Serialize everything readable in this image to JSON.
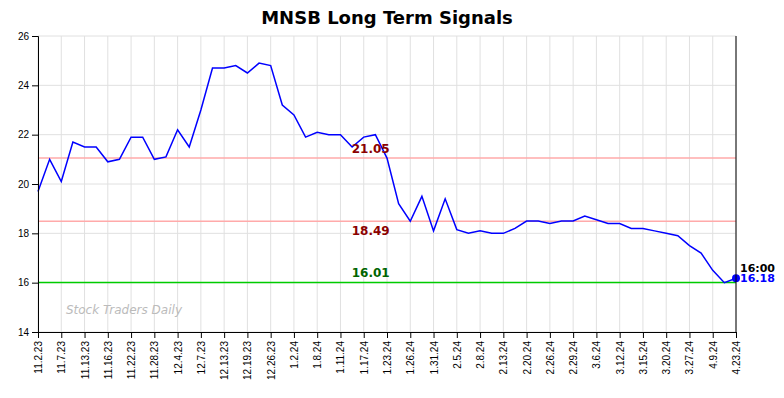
{
  "chart_data": {
    "type": "line",
    "title": "MNSB Long Term Signals",
    "categories": [
      "11.2.23",
      null,
      "11.7.23",
      null,
      "11.13.23",
      null,
      "11.16.23",
      null,
      "11.22.23",
      null,
      "11.28.23",
      null,
      "12.4.23",
      null,
      "12.7.23",
      null,
      "12.13.23",
      null,
      "12.19.23",
      null,
      "12.26.23",
      null,
      "1.2.24",
      null,
      "1.8.24",
      null,
      "1.11.24",
      null,
      "1.17.24",
      null,
      "1.23.24",
      null,
      "1.26.24",
      null,
      "1.31.24",
      null,
      "2.5.24",
      null,
      "2.8.24",
      null,
      "2.13.24",
      null,
      "2.20.24",
      null,
      "2.26.24",
      null,
      "2.29.24",
      null,
      "3.6.24",
      null,
      "3.12.24",
      null,
      "3.15.24",
      null,
      "3.20.24",
      null,
      "3.27.24",
      null,
      "4.9.24",
      null,
      "4.23.24"
    ],
    "values": [
      19.7,
      21.0,
      20.1,
      21.7,
      21.5,
      21.5,
      20.9,
      21.0,
      21.9,
      21.9,
      21.0,
      21.1,
      22.2,
      21.5,
      23.0,
      24.7,
      24.7,
      24.8,
      24.5,
      24.9,
      24.8,
      23.2,
      22.8,
      21.9,
      22.1,
      22.0,
      22.0,
      21.5,
      21.9,
      22.0,
      21.05,
      19.2,
      18.49,
      19.5,
      18.1,
      19.4,
      18.15,
      18.0,
      18.1,
      18.0,
      18.0,
      18.2,
      18.5,
      18.5,
      18.4,
      18.5,
      18.5,
      18.7,
      18.55,
      18.4,
      18.4,
      18.2,
      18.2,
      18.1,
      18.0,
      17.9,
      17.5,
      17.2,
      16.5,
      16.0,
      16.18
    ],
    "color": "#0000ff",
    "reference_lines": [
      {
        "value": 21.05,
        "label": "21.05",
        "color": "#ffaaaa",
        "label_color": "#8b0000"
      },
      {
        "value": 18.49,
        "label": "18.49",
        "color": "#ffaaaa",
        "label_color": "#8b0000"
      },
      {
        "value": 16.01,
        "label": "16.01",
        "color": "#00cc00",
        "label_color": "#006400"
      }
    ],
    "annotations": [
      {
        "text": "16:00",
        "color": "#000000"
      },
      {
        "text": "16.18",
        "y": 16.18,
        "color": "#0000ff"
      }
    ],
    "watermark": {
      "text": "Stock Traders Daily",
      "color": "#bbbbbb"
    },
    "ylim": [
      14,
      26
    ],
    "yticks": [
      14,
      16,
      18,
      20,
      22,
      24,
      26
    ],
    "grid": true
  }
}
